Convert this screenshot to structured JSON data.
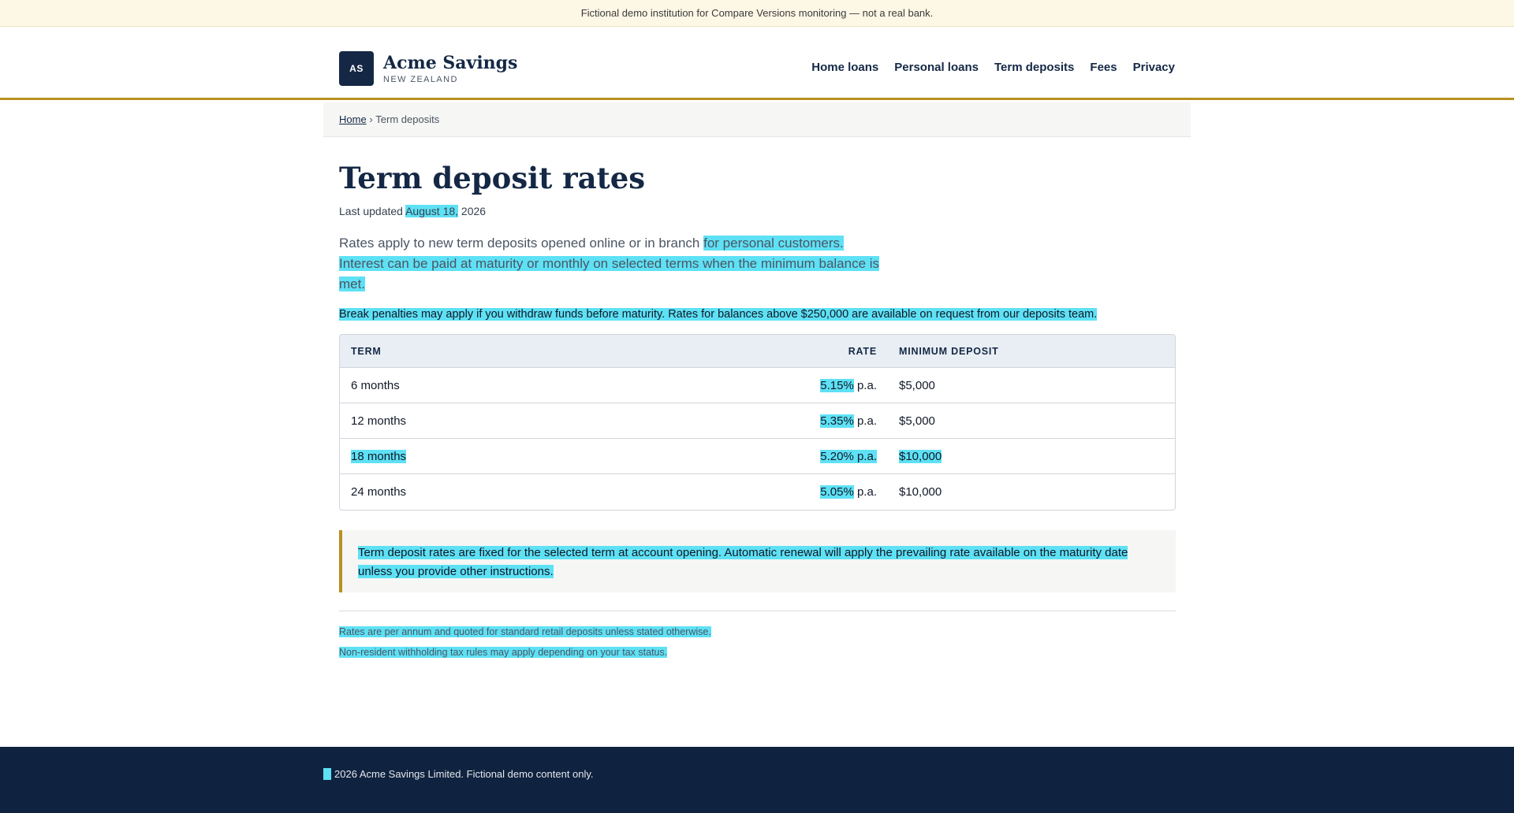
{
  "banner": {
    "text": "Fictional demo institution for Compare Versions monitoring — not a real bank."
  },
  "brand": {
    "mark": "AS",
    "name": "Acme Savings",
    "subtitle": "NEW ZEALAND"
  },
  "nav": {
    "items": [
      {
        "label": "Home loans"
      },
      {
        "label": "Personal loans"
      },
      {
        "label": "Term deposits"
      },
      {
        "label": "Fees"
      },
      {
        "label": "Privacy"
      }
    ]
  },
  "breadcrumb": {
    "home": "Home",
    "separator": "›",
    "current": "Term deposits"
  },
  "page": {
    "title": "Term deposit rates",
    "updated_prefix": "Last updated",
    "updated_date": "August 18,",
    "updated_year": "2026",
    "intro_plain": "Rates apply to new term deposits opened online or in branch ",
    "intro_changed": "for personal customers. Interest can be paid at maturity or monthly on selected terms when the minimum balance is met.",
    "notice": "Break penalties may apply if you withdraw funds before maturity. Rates for balances above $250,000 are available on request from our deposits team."
  },
  "table": {
    "headers": {
      "term": "TERM",
      "rate": "RATE",
      "min": "MINIMUM DEPOSIT"
    },
    "rows": [
      {
        "term": "6 months",
        "rate": "5.15%",
        "rate_suffix": "p.a.",
        "min": "$5,000"
      },
      {
        "term": "12 months",
        "rate": "5.35%",
        "rate_suffix": "p.a.",
        "min": "$5,000"
      },
      {
        "term": "18 months",
        "rate": "5.20%",
        "rate_suffix": "p.a.",
        "min": "$10,000"
      },
      {
        "term": "24 months",
        "rate": "5.05%",
        "rate_suffix": "p.a.",
        "min": "$10,000"
      }
    ]
  },
  "callout": {
    "text": "Term deposit rates are fixed for the selected term at account opening. Automatic renewal will apply the prevailing rate available on the maturity date unless you provide other instructions."
  },
  "fineprint": [
    "Rates are per annum and quoted for standard retail deposits unless stated otherwise.",
    "Non-resident withholding tax rules may apply depending on your tax status."
  ],
  "footer": {
    "text": "2026 Acme Savings Limited. Fictional demo content only."
  },
  "colors": {
    "navy": "#142845",
    "gold": "#b8901f",
    "highlight": "#5ee1f5",
    "footer": "#0f2340"
  }
}
